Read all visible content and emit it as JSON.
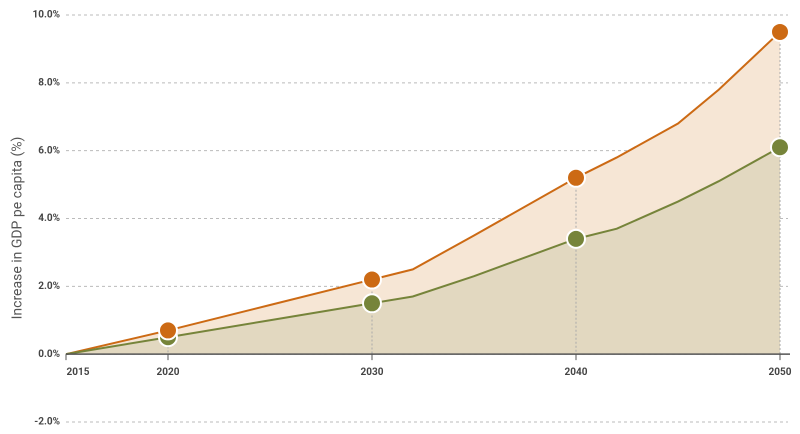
{
  "chart_data": {
    "type": "line",
    "ylabel": "Increase in GDP pe capita (%)",
    "x": [
      2015,
      2020,
      2025,
      2030,
      2032,
      2035,
      2040,
      2042,
      2045,
      2047,
      2050
    ],
    "series": [
      {
        "color": "#cc6a14",
        "fill": "#f6e6d5",
        "values": [
          0,
          0.7,
          1.45,
          2.2,
          2.5,
          3.5,
          5.2,
          5.8,
          6.8,
          7.8,
          9.5
        ]
      },
      {
        "color": "#76843a",
        "fill": "#e2d8c0",
        "values": [
          0,
          0.5,
          1.0,
          1.5,
          1.7,
          2.3,
          3.4,
          3.7,
          4.5,
          5.1,
          6.1
        ]
      }
    ],
    "xlim": [
      2015,
      2050
    ],
    "xticks": [
      2015,
      2020,
      2030,
      2040,
      2050
    ],
    "ylim": [
      -2,
      10
    ],
    "yticks": [
      {
        "value": -2,
        "label": "-2.0%"
      },
      {
        "value": 0,
        "label": "0.0%"
      },
      {
        "value": 2,
        "label": "2.0%"
      },
      {
        "value": 4,
        "label": "4.0%"
      },
      {
        "value": 6,
        "label": "6.0%"
      },
      {
        "value": 8,
        "label": "8.0%"
      },
      {
        "value": 10,
        "label": "10.0%"
      }
    ],
    "grid": true
  }
}
